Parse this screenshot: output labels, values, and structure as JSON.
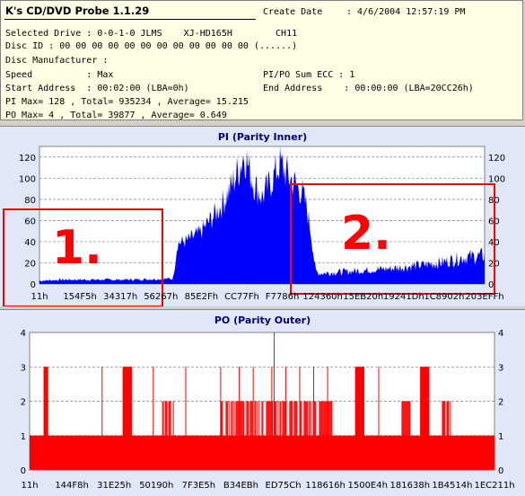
{
  "header": {
    "app_title": "K's CD/DVD Probe 1.1.29",
    "create_date_label": "Create Date",
    "create_date_value": ": 4/6/2004 12:57:19 PM",
    "drive_line": "Selected Drive : 0-0-1-0 JLMS    XJ-HD165H        CH11",
    "disc_id_line": "Disc ID : 00 00 00 00 00 00 00 00 00 00 00 00 (......)",
    "manufacturer_line": "Disc Manufacturer :",
    "speed_line": "Speed          : Max",
    "pipo_line": "PI/PO Sum ECC : 1",
    "start_line": "Start Address  : 00:02:00 (LBA=0h)",
    "end_line": "End Address    : 00:00:00 (LBA=20CC26h)",
    "pi_stats": "PI Max= 128 , Total= 935234 , Average= 15.215",
    "po_stats": "PO Max= 4 , Total= 39877 , Average= 0.649"
  },
  "pi_chart": {
    "title": "PI (Parity Inner)",
    "annotations": [
      "1.",
      "2."
    ],
    "colors": {
      "fill": "#0000ff",
      "grid": "#808080",
      "annotation": "#ff0000",
      "title": "#000080"
    }
  },
  "po_chart": {
    "title": "PO (Parity Outer)",
    "colors": {
      "fill": "#ff0000",
      "grid": "#808080",
      "title": "#000080"
    }
  },
  "chart_data": [
    {
      "type": "area",
      "title": "PI (Parity Inner)",
      "ylim": [
        0,
        130
      ],
      "yticks": [
        0,
        20,
        40,
        60,
        80,
        100,
        120
      ],
      "xtick_labels": [
        "11h",
        "154F5h",
        "34317h",
        "56267h",
        "85E2Fh",
        "CC77Fh",
        "F7786h",
        "124360h",
        "15EB20h",
        "19241Dh",
        "1C8902h",
        "203EFFh"
      ],
      "grid": true,
      "profile": {
        "x_fraction": [
          0.0,
          0.05,
          0.2,
          0.3,
          0.31,
          0.33,
          0.36,
          0.39,
          0.41,
          0.43,
          0.45,
          0.46,
          0.48,
          0.5,
          0.52,
          0.54,
          0.56,
          0.59,
          0.6,
          0.61,
          0.62,
          0.63,
          0.7,
          0.8,
          0.86,
          0.9,
          0.95,
          1.0
        ],
        "y": [
          3,
          4,
          4,
          5,
          40,
          42,
          50,
          66,
          78,
          95,
          115,
          128,
          100,
          85,
          100,
          118,
          105,
          90,
          75,
          50,
          12,
          10,
          12,
          15,
          18,
          20,
          25,
          27
        ]
      }
    },
    {
      "type": "bar",
      "title": "PO (Parity Outer)",
      "ylim": [
        0,
        4
      ],
      "yticks": [
        0,
        1,
        2,
        3,
        4
      ],
      "xtick_labels": [
        "11h",
        "144F8h",
        "31E25h",
        "50190h",
        "7F3E5h",
        "B34EBh",
        "ED75Ch",
        "118616h",
        "1500E4h",
        "181638h",
        "1B4514h",
        "1EC211h"
      ],
      "grid": true,
      "baseline_level": 1,
      "level_2_regions": [
        [
          0.285,
          0.31
        ],
        [
          0.41,
          0.65
        ],
        [
          0.8,
          0.82
        ],
        [
          0.885,
          0.905
        ]
      ],
      "level_3_regions": [
        [
          0.03,
          0.04
        ],
        [
          0.2,
          0.22
        ],
        [
          0.7,
          0.72
        ],
        [
          0.84,
          0.86
        ]
      ],
      "level_3_lines": [
        0.155,
        0.265,
        0.335,
        0.41,
        0.45,
        0.48,
        0.52,
        0.55,
        0.58,
        0.61,
        0.64,
        0.75
      ],
      "level_4_lines": [
        0.525
      ]
    }
  ]
}
